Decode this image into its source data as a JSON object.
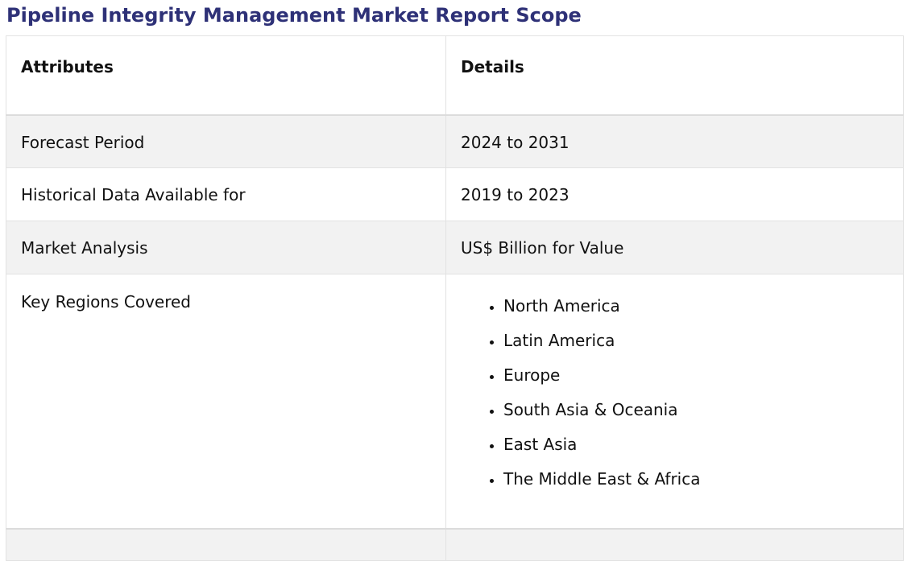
{
  "title": "Pipeline Integrity Management Market Report Scope",
  "table": {
    "headers": [
      "Attributes",
      "Details"
    ],
    "rows": [
      {
        "attribute": "Forecast Period",
        "details": "2024 to 2031"
      },
      {
        "attribute": "Historical Data Available for",
        "details": "2019 to 2023"
      },
      {
        "attribute": "Market Analysis",
        "details": "US$ Billion for Value"
      }
    ],
    "regions_row": {
      "attribute": "Key Regions Covered",
      "items": [
        "North America",
        "Latin America",
        "Europe",
        "South Asia & Oceania",
        "East Asia",
        "The Middle East & Africa"
      ]
    }
  },
  "colors": {
    "title": "#2e3177",
    "row_shade": "#f2f2f2",
    "border": "#e2e2e2"
  }
}
